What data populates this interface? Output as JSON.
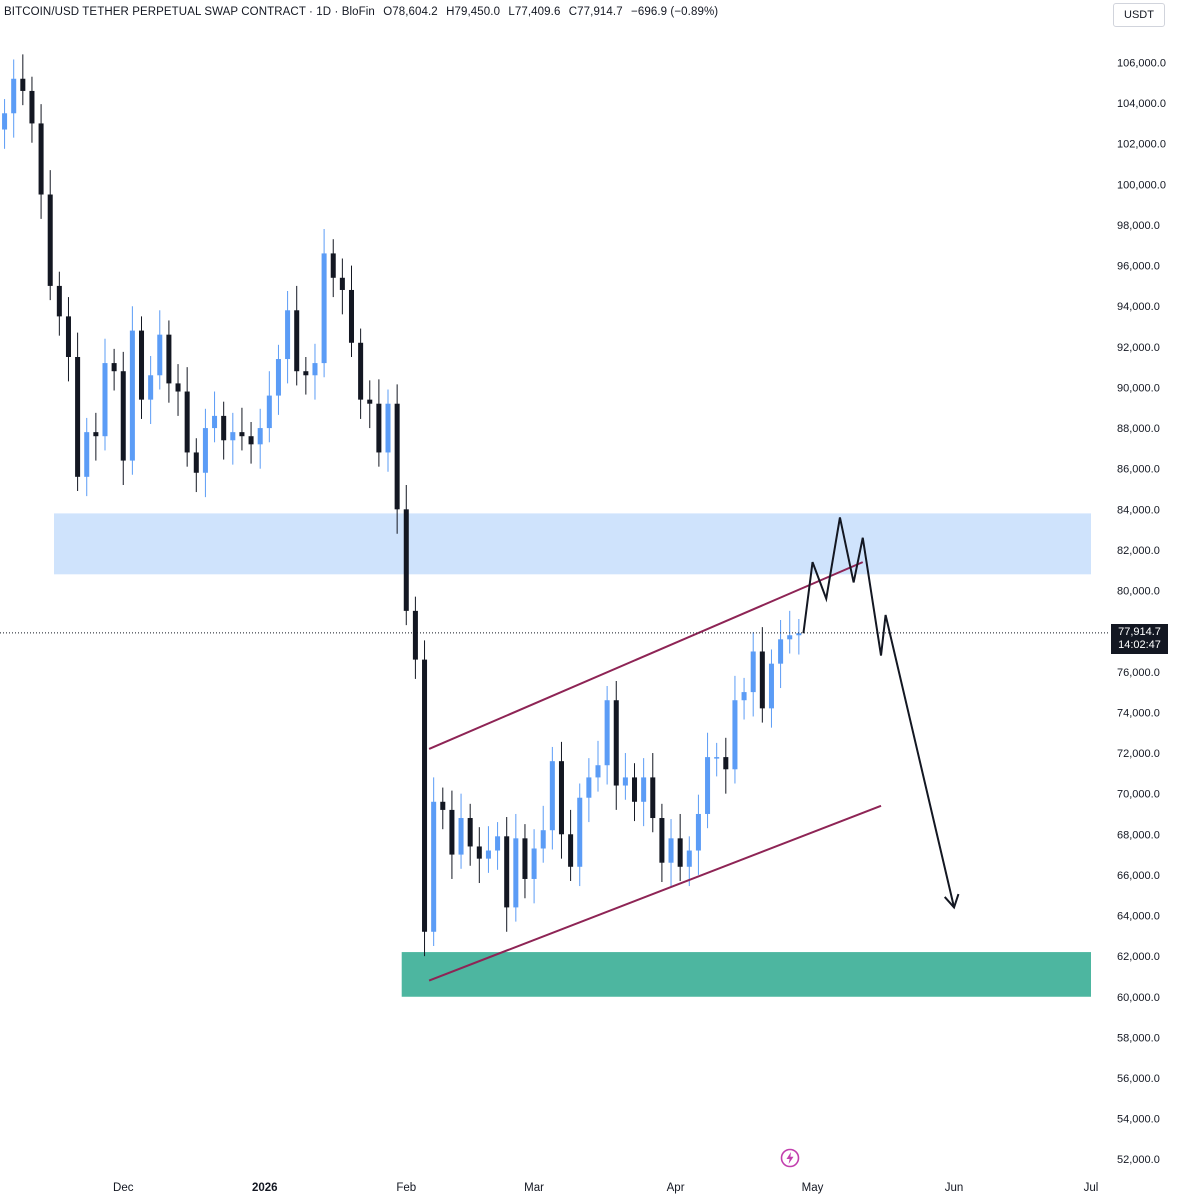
{
  "header": {
    "symbol": "BITCOIN/USD TETHER PERPETUAL SWAP CONTRACT · 1D · BloFin",
    "open": "O78,604.2",
    "high": "H79,450.0",
    "low": "L77,409.6",
    "close": "C77,914.7",
    "change": "−696.9 (−0.89%)"
  },
  "currency": "USDT",
  "last_price": {
    "value": "77,914.7",
    "countdown": "14:02:47"
  },
  "colors": {
    "up": "#5b9cf6",
    "down": "#131722",
    "supply_zone": "#cfe3fc",
    "demand_zone": "#4db6a0",
    "channel": "#8e2455",
    "projection": "#131722"
  },
  "chart_data": {
    "type": "candlestick",
    "title": "BITCOIN/USD TETHER PERPETUAL SWAP CONTRACT · 1D · BloFin",
    "y_ticks": [
      "106,000.0",
      "104,000.0",
      "102,000.0",
      "100,000.0",
      "98,000.0",
      "96,000.0",
      "94,000.0",
      "92,000.0",
      "90,000.0",
      "88,000.0",
      "86,000.0",
      "84,000.0",
      "82,000.0",
      "80,000.0",
      "78,000.0",
      "76,000.0",
      "74,000.0",
      "72,000.0",
      "70,000.0",
      "68,000.0",
      "66,000.0",
      "64,000.0",
      "62,000.0",
      "60,000.0",
      "58,000.0",
      "56,000.0",
      "54,000.0",
      "52,000.0"
    ],
    "ylim": [
      51500,
      107500
    ],
    "x_ticks": [
      {
        "label": "Dec",
        "date": "2025-12-01"
      },
      {
        "label": "2026",
        "date": "2026-01-01"
      },
      {
        "label": "Feb",
        "date": "2026-02-01"
      },
      {
        "label": "Mar",
        "date": "2026-03-01"
      },
      {
        "label": "Apr",
        "date": "2026-04-01"
      },
      {
        "label": "May",
        "date": "2026-05-01"
      },
      {
        "label": "Jun",
        "date": "2026-06-01"
      },
      {
        "label": "Jul",
        "date": "2026-07-01"
      }
    ],
    "x_range": [
      "2025-11-04",
      "2026-07-01"
    ],
    "closes": [
      {
        "date": "2025-11-05",
        "c": 103500
      },
      {
        "date": "2025-11-07",
        "c": 105200
      },
      {
        "date": "2025-11-09",
        "c": 104600
      },
      {
        "date": "2025-11-11",
        "c": 103000
      },
      {
        "date": "2025-11-13",
        "c": 99500
      },
      {
        "date": "2025-11-15",
        "c": 95000
      },
      {
        "date": "2025-11-17",
        "c": 93500
      },
      {
        "date": "2025-11-19",
        "c": 91500
      },
      {
        "date": "2025-11-21",
        "c": 85600
      },
      {
        "date": "2025-11-23",
        "c": 87800
      },
      {
        "date": "2025-11-25",
        "c": 87600
      },
      {
        "date": "2025-11-27",
        "c": 91200
      },
      {
        "date": "2025-11-29",
        "c": 90800
      },
      {
        "date": "2025-12-01",
        "c": 86400
      },
      {
        "date": "2025-12-03",
        "c": 92800
      },
      {
        "date": "2025-12-05",
        "c": 89400
      },
      {
        "date": "2025-12-07",
        "c": 90600
      },
      {
        "date": "2025-12-09",
        "c": 92600
      },
      {
        "date": "2025-12-11",
        "c": 90200
      },
      {
        "date": "2025-12-13",
        "c": 89800
      },
      {
        "date": "2025-12-15",
        "c": 86800
      },
      {
        "date": "2025-12-17",
        "c": 85800
      },
      {
        "date": "2025-12-19",
        "c": 88000
      },
      {
        "date": "2025-12-21",
        "c": 88600
      },
      {
        "date": "2025-12-23",
        "c": 87400
      },
      {
        "date": "2025-12-25",
        "c": 87800
      },
      {
        "date": "2025-12-27",
        "c": 87600
      },
      {
        "date": "2025-12-29",
        "c": 87200
      },
      {
        "date": "2025-12-31",
        "c": 88000
      },
      {
        "date": "2026-01-02",
        "c": 89600
      },
      {
        "date": "2026-01-04",
        "c": 91400
      },
      {
        "date": "2026-01-06",
        "c": 93800
      },
      {
        "date": "2026-01-08",
        "c": 90800
      },
      {
        "date": "2026-01-10",
        "c": 90600
      },
      {
        "date": "2026-01-12",
        "c": 91200
      },
      {
        "date": "2026-01-14",
        "c": 96600
      },
      {
        "date": "2026-01-16",
        "c": 95400
      },
      {
        "date": "2026-01-18",
        "c": 94800
      },
      {
        "date": "2026-01-20",
        "c": 92200
      },
      {
        "date": "2026-01-22",
        "c": 89400
      },
      {
        "date": "2026-01-24",
        "c": 89200
      },
      {
        "date": "2026-01-26",
        "c": 86800
      },
      {
        "date": "2026-01-28",
        "c": 89200
      },
      {
        "date": "2026-01-30",
        "c": 84000
      },
      {
        "date": "2026-02-01",
        "c": 79000
      },
      {
        "date": "2026-02-03",
        "c": 76600
      },
      {
        "date": "2026-02-05",
        "c": 63200
      },
      {
        "date": "2026-02-07",
        "c": 69600
      },
      {
        "date": "2026-02-09",
        "c": 69200
      },
      {
        "date": "2026-02-11",
        "c": 67000
      },
      {
        "date": "2026-02-13",
        "c": 68800
      },
      {
        "date": "2026-02-15",
        "c": 67400
      },
      {
        "date": "2026-02-17",
        "c": 66800
      },
      {
        "date": "2026-02-19",
        "c": 67200
      },
      {
        "date": "2026-02-21",
        "c": 67900
      },
      {
        "date": "2026-02-23",
        "c": 64400
      },
      {
        "date": "2026-02-25",
        "c": 67800
      },
      {
        "date": "2026-02-27",
        "c": 65800
      },
      {
        "date": "2026-03-01",
        "c": 67300
      },
      {
        "date": "2026-03-03",
        "c": 68200
      },
      {
        "date": "2026-03-05",
        "c": 71600
      },
      {
        "date": "2026-03-07",
        "c": 68000
      },
      {
        "date": "2026-03-09",
        "c": 66400
      },
      {
        "date": "2026-03-11",
        "c": 69800
      },
      {
        "date": "2026-03-13",
        "c": 70800
      },
      {
        "date": "2026-03-15",
        "c": 71400
      },
      {
        "date": "2026-03-17",
        "c": 74600
      },
      {
        "date": "2026-03-19",
        "c": 70400
      },
      {
        "date": "2026-03-21",
        "c": 70800
      },
      {
        "date": "2026-03-23",
        "c": 69600
      },
      {
        "date": "2026-03-25",
        "c": 70800
      },
      {
        "date": "2026-03-27",
        "c": 68800
      },
      {
        "date": "2026-03-29",
        "c": 66600
      },
      {
        "date": "2026-03-31",
        "c": 67800
      },
      {
        "date": "2026-04-02",
        "c": 66400
      },
      {
        "date": "2026-04-04",
        "c": 67200
      },
      {
        "date": "2026-04-06",
        "c": 69000
      },
      {
        "date": "2026-04-08",
        "c": 71800
      },
      {
        "date": "2026-04-10",
        "c": 71800
      },
      {
        "date": "2026-04-12",
        "c": 71200
      },
      {
        "date": "2026-04-14",
        "c": 74600
      },
      {
        "date": "2026-04-16",
        "c": 75000
      },
      {
        "date": "2026-04-18",
        "c": 77000
      },
      {
        "date": "2026-04-20",
        "c": 74200
      },
      {
        "date": "2026-04-22",
        "c": 76400
      },
      {
        "date": "2026-04-24",
        "c": 77600
      },
      {
        "date": "2026-04-26",
        "c": 77800
      },
      {
        "date": "2026-04-28",
        "c": 77900
      }
    ],
    "zones": [
      {
        "name": "supply",
        "from_date": "2025-11-07",
        "to_date": "2026-07-01",
        "low": 80800,
        "high": 83800
      },
      {
        "name": "demand",
        "from_date": "2026-01-31",
        "to_date": "2026-07-01",
        "low": 60000,
        "high": 62200
      }
    ],
    "channel_lines": [
      {
        "from": {
          "date": "2026-02-06",
          "price": 72200
        },
        "to": {
          "date": "2026-05-12",
          "price": 81400
        }
      },
      {
        "from": {
          "date": "2026-02-06",
          "price": 60800
        },
        "to": {
          "date": "2026-05-16",
          "price": 69400
        }
      }
    ],
    "projection_path": [
      {
        "date": "2026-04-29",
        "price": 77900
      },
      {
        "date": "2026-05-01",
        "price": 81400
      },
      {
        "date": "2026-05-04",
        "price": 79600
      },
      {
        "date": "2026-05-07",
        "price": 83600
      },
      {
        "date": "2026-05-10",
        "price": 80400
      },
      {
        "date": "2026-05-12",
        "price": 82600
      },
      {
        "date": "2026-05-16",
        "price": 76800
      },
      {
        "date": "2026-05-17",
        "price": 78800
      },
      {
        "date": "2026-06-01",
        "price": 64400
      }
    ],
    "last_price": 77914.7
  }
}
